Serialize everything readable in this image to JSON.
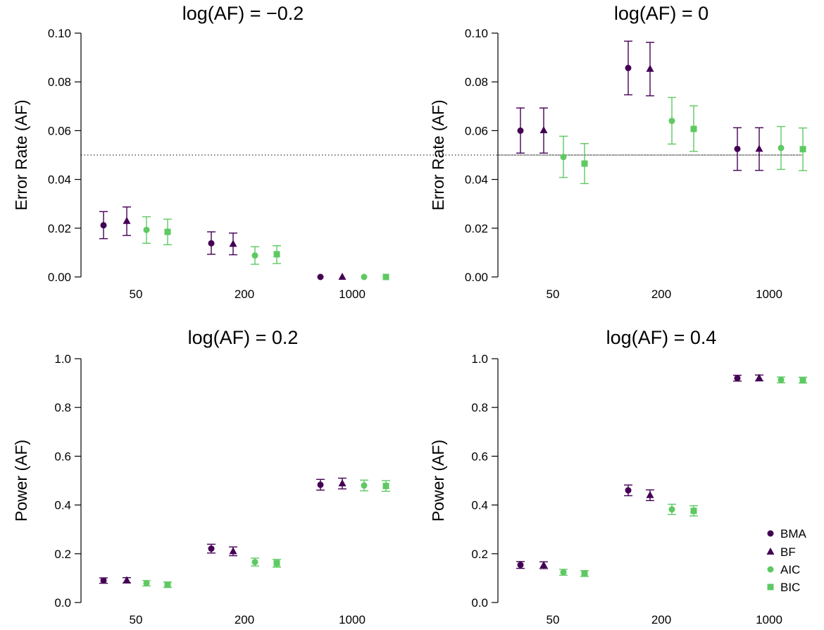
{
  "colors": {
    "BMA": "#440154",
    "BF": "#440154",
    "AIC": "#5ec962",
    "BIC": "#5ec962",
    "reference_line": "#000000"
  },
  "legend": {
    "position": "bottom-right",
    "entries": [
      {
        "name": "BMA",
        "shape": "circle"
      },
      {
        "name": "BF",
        "shape": "triangle"
      },
      {
        "name": "AIC",
        "shape": "circle"
      },
      {
        "name": "BIC",
        "shape": "square"
      }
    ]
  },
  "chart_data": [
    {
      "type": "scatter",
      "title": "log(AF) = −0.2",
      "ylabel": "Error Rate (AF)",
      "xlabel": "",
      "categories": [
        "50",
        "200",
        "1000"
      ],
      "ylim": [
        0,
        0.1
      ],
      "yticks": [
        "0.00",
        "0.02",
        "0.04",
        "0.06",
        "0.08",
        "0.10"
      ],
      "reference_line": 0.05,
      "series": [
        {
          "name": "BMA",
          "values": [
            0.0212,
            0.0138,
            0.0
          ],
          "lower": [
            0.0157,
            0.0093,
            0.0
          ],
          "upper": [
            0.0268,
            0.0185,
            0.0
          ]
        },
        {
          "name": "BF",
          "values": [
            0.0229,
            0.0135,
            0.0
          ],
          "lower": [
            0.017,
            0.0091,
            0.0
          ],
          "upper": [
            0.0287,
            0.018,
            0.0
          ]
        },
        {
          "name": "AIC",
          "values": [
            0.0193,
            0.0088,
            0.0
          ],
          "lower": [
            0.0138,
            0.0052,
            0.0
          ],
          "upper": [
            0.0247,
            0.0124,
            0.0
          ]
        },
        {
          "name": "BIC",
          "values": [
            0.0185,
            0.0093,
            0.0
          ],
          "lower": [
            0.0132,
            0.0055,
            0.0
          ],
          "upper": [
            0.0237,
            0.0128,
            0.0
          ]
        }
      ]
    },
    {
      "type": "scatter",
      "title": "log(AF) = 0",
      "ylabel": "Error Rate (AF)",
      "xlabel": "",
      "categories": [
        "50",
        "200",
        "1000"
      ],
      "ylim": [
        0,
        0.1
      ],
      "yticks": [
        "0.00",
        "0.02",
        "0.04",
        "0.06",
        "0.08",
        "0.10"
      ],
      "reference_line": 0.05,
      "series": [
        {
          "name": "BMA",
          "values": [
            0.06,
            0.0857,
            0.0525
          ],
          "lower": [
            0.0508,
            0.0747,
            0.0437
          ],
          "upper": [
            0.0693,
            0.0967,
            0.0612
          ]
        },
        {
          "name": "BF",
          "values": [
            0.0601,
            0.0853,
            0.0525
          ],
          "lower": [
            0.0508,
            0.0743,
            0.0437
          ],
          "upper": [
            0.0693,
            0.0962,
            0.0612
          ]
        },
        {
          "name": "AIC",
          "values": [
            0.0492,
            0.064,
            0.0529
          ],
          "lower": [
            0.0408,
            0.0545,
            0.0441
          ],
          "upper": [
            0.0577,
            0.0736,
            0.0617
          ]
        },
        {
          "name": "BIC",
          "values": [
            0.0465,
            0.0607,
            0.0524
          ],
          "lower": [
            0.0383,
            0.0515,
            0.0436
          ],
          "upper": [
            0.0547,
            0.0702,
            0.0611
          ]
        }
      ]
    },
    {
      "type": "scatter",
      "title": "log(AF) = 0.2",
      "ylabel": "Power (AF)",
      "xlabel": "",
      "categories": [
        "50",
        "200",
        "1000"
      ],
      "ylim": [
        0,
        1
      ],
      "yticks": [
        "0.0",
        "0.2",
        "0.4",
        "0.6",
        "0.8",
        "1.0"
      ],
      "series": [
        {
          "name": "BMA",
          "values": [
            0.09,
            0.221,
            0.483
          ],
          "lower": [
            0.079,
            0.203,
            0.461
          ],
          "upper": [
            0.101,
            0.239,
            0.505
          ]
        },
        {
          "name": "BF",
          "values": [
            0.091,
            0.21,
            0.488
          ],
          "lower": [
            0.08,
            0.192,
            0.466
          ],
          "upper": [
            0.102,
            0.228,
            0.51
          ]
        },
        {
          "name": "AIC",
          "values": [
            0.079,
            0.166,
            0.48
          ],
          "lower": [
            0.068,
            0.15,
            0.458
          ],
          "upper": [
            0.09,
            0.182,
            0.502
          ]
        },
        {
          "name": "BIC",
          "values": [
            0.073,
            0.161,
            0.478
          ],
          "lower": [
            0.062,
            0.145,
            0.456
          ],
          "upper": [
            0.084,
            0.177,
            0.5
          ]
        }
      ]
    },
    {
      "type": "scatter",
      "title": "log(AF) = 0.4",
      "ylabel": "Power (AF)",
      "xlabel": "",
      "categories": [
        "50",
        "200",
        "1000"
      ],
      "ylim": [
        0,
        1
      ],
      "yticks": [
        "0.0",
        "0.2",
        "0.4",
        "0.6",
        "0.8",
        "1.0"
      ],
      "series": [
        {
          "name": "BMA",
          "values": [
            0.154,
            0.46,
            0.92
          ],
          "lower": [
            0.14,
            0.438,
            0.908
          ],
          "upper": [
            0.168,
            0.482,
            0.932
          ]
        },
        {
          "name": "BF",
          "values": [
            0.153,
            0.44,
            0.921
          ],
          "lower": [
            0.139,
            0.418,
            0.909
          ],
          "upper": [
            0.167,
            0.462,
            0.933
          ]
        },
        {
          "name": "AIC",
          "values": [
            0.124,
            0.382,
            0.913
          ],
          "lower": [
            0.112,
            0.361,
            0.901
          ],
          "upper": [
            0.136,
            0.403,
            0.925
          ]
        },
        {
          "name": "BIC",
          "values": [
            0.119,
            0.376,
            0.912
          ],
          "lower": [
            0.107,
            0.355,
            0.9
          ],
          "upper": [
            0.131,
            0.397,
            0.924
          ]
        }
      ]
    }
  ]
}
